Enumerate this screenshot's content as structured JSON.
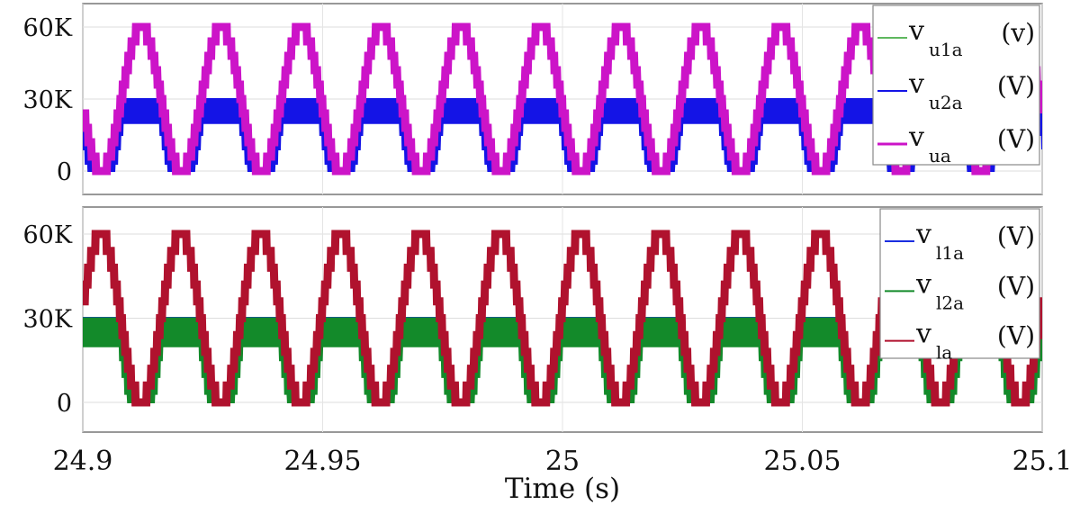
{
  "chart_data": [
    {
      "type": "line",
      "xlabel": "Time (s)",
      "xlim": [
        24.9,
        25.1
      ],
      "ylim": [
        -8000,
        67000
      ],
      "yticks": [
        "0",
        "30K",
        "60K"
      ],
      "ytick_values": [
        0,
        30000,
        60000
      ],
      "grid": true,
      "legend_position": "top-right",
      "fundamental_frequency_hz": 60,
      "series": [
        {
          "name": "v",
          "sub": "u1a",
          "unit": "(v)",
          "color": "#5fb85f",
          "range": [
            0,
            30000
          ]
        },
        {
          "name": "v",
          "sub": "u2a",
          "unit": "(V)",
          "color": "#1414e6",
          "range": [
            0,
            30000
          ]
        },
        {
          "name": "v",
          "sub": "ua",
          "unit": "(V)",
          "color": "#cc14c8",
          "range": [
            0,
            60000
          ],
          "first_peak_time": 24.9122
        }
      ]
    },
    {
      "type": "line",
      "xlabel": "Time (s)",
      "xlim": [
        24.9,
        25.1
      ],
      "ylim": [
        -8000,
        67000
      ],
      "yticks": [
        "0",
        "30K",
        "60K"
      ],
      "ytick_values": [
        0,
        30000,
        60000
      ],
      "grid": true,
      "legend_position": "top-right",
      "fundamental_frequency_hz": 60,
      "series": [
        {
          "name": "v",
          "sub": "l1a",
          "unit": "(V)",
          "color": "#1a2ee0",
          "range": [
            0,
            30000
          ]
        },
        {
          "name": "v",
          "sub": "l2a",
          "unit": "(V)",
          "color": "#138a2a",
          "range": [
            0,
            30000
          ]
        },
        {
          "name": "v",
          "sub": "la",
          "unit": "(V)",
          "color": "#b0122e",
          "range": [
            0,
            60000
          ],
          "first_peak_time": 24.9038
        }
      ]
    }
  ],
  "xaxis": {
    "ticks": [
      "24.9",
      "24.95",
      "25",
      "25.05",
      "25.1"
    ],
    "tick_values": [
      24.9,
      24.95,
      25,
      25.05,
      25.1
    ],
    "label": "Time (s)"
  }
}
